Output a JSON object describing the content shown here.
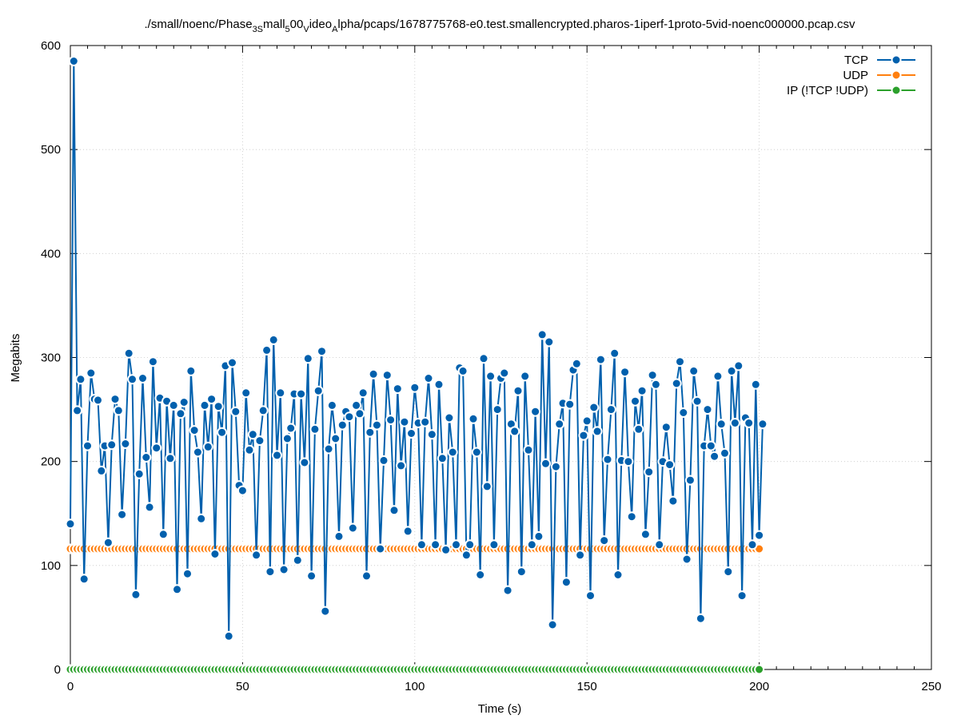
{
  "chart_data": {
    "type": "line",
    "title": "./small/noenc/Phase3Small500VideoAlpha/pcaps/1678775768-e0.test.smallencrypted.pharos-1iperf-1proto-5vid-noenc000000.pcap.csv",
    "title_parts": {
      "p1": "./small/noenc/Phase",
      "s1": "3S",
      "p2": "mall",
      "s2": "5",
      "p3": "00",
      "s3": "V",
      "p4": "ideo",
      "s4": "A",
      "p5": "lpha/pcaps/1678775768-e0.test.smallencrypted.pharos-1iperf-1proto-5vid-noenc000000.pcap.csv"
    },
    "xlabel": "Time (s)",
    "ylabel": "Megabits",
    "xlim": [
      0,
      250
    ],
    "ylim": [
      0,
      600
    ],
    "x_ticks": [
      "0",
      "50",
      "100",
      "150",
      "200",
      "250"
    ],
    "y_ticks": [
      "0",
      "100",
      "200",
      "300",
      "400",
      "500",
      "600"
    ],
    "grid": true,
    "legend_position": "top-right",
    "series": [
      {
        "name": "TCP",
        "color": "#0060ad",
        "x_start": 0,
        "x_step": 1,
        "values": [
          140,
          585,
          249,
          279,
          87,
          215,
          285,
          260,
          259,
          191,
          215,
          122,
          216,
          260,
          249,
          149,
          217,
          304,
          279,
          72,
          188,
          280,
          204,
          156,
          296,
          213,
          261,
          130,
          258,
          203,
          254,
          77,
          246,
          257,
          92,
          287,
          230,
          209,
          145,
          254,
          214,
          260,
          111,
          253,
          228,
          292,
          32,
          295,
          248,
          177,
          172,
          266,
          211,
          226,
          110,
          220,
          249,
          307,
          94,
          317,
          206,
          266,
          96,
          222,
          232,
          265,
          105,
          265,
          199,
          299,
          90,
          231,
          268,
          306,
          56,
          212,
          254,
          222,
          128,
          235,
          248,
          243,
          136,
          254,
          246,
          266,
          90,
          228,
          284,
          235,
          116,
          201,
          283,
          240,
          153,
          270,
          196,
          238,
          133,
          227,
          271,
          237,
          120,
          238,
          280,
          226,
          120,
          274,
          203,
          115,
          242,
          209,
          120,
          290,
          287,
          110,
          120,
          241,
          209,
          91,
          299,
          176,
          282,
          120,
          250,
          280,
          285,
          76,
          236,
          229,
          268,
          94,
          282,
          211,
          120,
          248,
          128,
          322,
          198,
          315,
          43,
          195,
          236,
          256,
          84,
          255,
          288,
          294,
          110,
          225,
          239,
          71,
          252,
          229,
          298,
          124,
          202,
          250,
          304,
          91,
          201,
          286,
          200,
          147,
          258,
          231,
          268,
          130,
          190,
          283,
          274,
          120,
          200,
          233,
          197,
          162,
          275,
          296,
          247,
          106,
          182,
          287,
          258,
          49,
          215,
          250,
          215,
          205,
          282,
          236,
          208,
          94,
          287,
          237,
          292,
          71,
          242,
          237,
          120,
          274,
          129,
          236
        ]
      },
      {
        "name": "UDP",
        "color": "#ff7f0e",
        "x_start": 0,
        "x_step": 1,
        "values": [
          116,
          116,
          116,
          116,
          116,
          116,
          116,
          116,
          116,
          116,
          116,
          116,
          116,
          116,
          116,
          116,
          116,
          116,
          116,
          116,
          116,
          116,
          116,
          116,
          116,
          116,
          116,
          116,
          116,
          116,
          116,
          116,
          116,
          116,
          116,
          116,
          116,
          116,
          116,
          116,
          116,
          116,
          116,
          116,
          116,
          116,
          116,
          116,
          116,
          116,
          116,
          116,
          116,
          116,
          116,
          116,
          116,
          116,
          116,
          116,
          116,
          116,
          116,
          116,
          116,
          116,
          116,
          116,
          116,
          116,
          116,
          116,
          116,
          116,
          116,
          116,
          116,
          116,
          116,
          116,
          116,
          116,
          116,
          116,
          116,
          116,
          116,
          116,
          116,
          116,
          116,
          116,
          116,
          116,
          116,
          116,
          116,
          116,
          116,
          116,
          116,
          116,
          116,
          116,
          116,
          116,
          116,
          116,
          116,
          116,
          116,
          116,
          116,
          116,
          116,
          116,
          116,
          116,
          116,
          116,
          116,
          116,
          116,
          116,
          116,
          116,
          116,
          116,
          116,
          116,
          116,
          116,
          116,
          116,
          116,
          116,
          116,
          116,
          116,
          116,
          116,
          116,
          116,
          116,
          116,
          116,
          116,
          116,
          116,
          116,
          116,
          116,
          116,
          116,
          116,
          116,
          116,
          116,
          116,
          116,
          116,
          116,
          116,
          116,
          116,
          116,
          116,
          116,
          116,
          116,
          116,
          116,
          116,
          116,
          116,
          116,
          116,
          116,
          116,
          116,
          116,
          116,
          116,
          116,
          116,
          116,
          116,
          116,
          116,
          116,
          116,
          116,
          116,
          116,
          116,
          116,
          116,
          116,
          116,
          116,
          116
        ]
      },
      {
        "name": "IP (!TCP  !UDP)",
        "color": "#2ca02c",
        "x_start": 0,
        "x_step": 1,
        "values": [
          0,
          0,
          0,
          0,
          0,
          0,
          0,
          0,
          0,
          0,
          0,
          0,
          0,
          0,
          0,
          0,
          0,
          0,
          0,
          0,
          0,
          0,
          0,
          0,
          0,
          0,
          0,
          0,
          0,
          0,
          0,
          0,
          0,
          0,
          0,
          0,
          0,
          0,
          0,
          0,
          0,
          0,
          0,
          0,
          0,
          0,
          0,
          0,
          0,
          0,
          0,
          0,
          0,
          0,
          0,
          0,
          0,
          0,
          0,
          0,
          0,
          0,
          0,
          0,
          0,
          0,
          0,
          0,
          0,
          0,
          0,
          0,
          0,
          0,
          0,
          0,
          0,
          0,
          0,
          0,
          0,
          0,
          0,
          0,
          0,
          0,
          0,
          0,
          0,
          0,
          0,
          0,
          0,
          0,
          0,
          0,
          0,
          0,
          0,
          0,
          0,
          0,
          0,
          0,
          0,
          0,
          0,
          0,
          0,
          0,
          0,
          0,
          0,
          0,
          0,
          0,
          0,
          0,
          0,
          0,
          0,
          0,
          0,
          0,
          0,
          0,
          0,
          0,
          0,
          0,
          0,
          0,
          0,
          0,
          0,
          0,
          0,
          0,
          0,
          0,
          0,
          0,
          0,
          0,
          0,
          0,
          0,
          0,
          0,
          0,
          0,
          0,
          0,
          0,
          0,
          0,
          0,
          0,
          0,
          0,
          0,
          0,
          0,
          0,
          0,
          0,
          0,
          0,
          0,
          0,
          0,
          0,
          0,
          0,
          0,
          0,
          0,
          0,
          0,
          0,
          0,
          0,
          0,
          0,
          0,
          0,
          0,
          0,
          0,
          0,
          0,
          0,
          0,
          0,
          0,
          0,
          0,
          0,
          0,
          0,
          0
        ]
      }
    ]
  }
}
